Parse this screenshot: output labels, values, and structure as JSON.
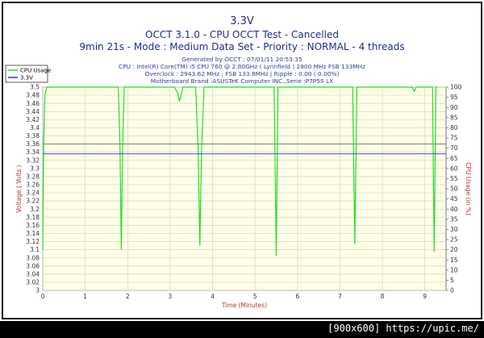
{
  "chart_data": {
    "type": "line",
    "title": "3.3V",
    "subtitle_lines": [
      "OCCT 3.1.0 - CPU OCCT Test - Cancelled",
      "9min 21s - Mode : Medium Data Set - Priority : NORMAL - 4 threads"
    ],
    "info_lines": [
      "Generated by OCCT : 07/01/11 20:53:35",
      "CPU : Intel(R) Core(TM) i5 CPU 760 @ 2.80GHz ( Lynnfield ) 2800 MHz FSB 133MHz",
      "Overclock : 2943.62 MHz ; FSB 133.8MHz | Ripple : 0.00 ( 0.00%)",
      "Motherboard Brand :ASUSTeK Computer INC.,Serie :P7P55 LX"
    ],
    "xlabel": "Time (Minutes)",
    "ylabel": "Voltage ( Volts )",
    "y2label": "CPU Usage (in %)",
    "xlim": [
      0,
      9.5
    ],
    "ylim": [
      3.0,
      3.5
    ],
    "y2lim": [
      0,
      100
    ],
    "x_ticks": [
      "0",
      "1",
      "2",
      "3",
      "4",
      "5",
      "6",
      "7",
      "8",
      "9"
    ],
    "y_ticks": [
      "3.5",
      "3.48",
      "3.46",
      "3.44",
      "3.42",
      "3.4",
      "3.38",
      "3.36",
      "3.34",
      "3.32",
      "3.3",
      "3.28",
      "3.26",
      "3.24",
      "3.22",
      "3.2",
      "3.18",
      "3.16",
      "3.14",
      "3.12",
      "3.1",
      "3.08",
      "3.06",
      "3.04",
      "3.02",
      "3"
    ],
    "y2_ticks": [
      "100",
      "95",
      "90",
      "85",
      "80",
      "75",
      "70",
      "65",
      "60",
      "55",
      "50",
      "45",
      "40",
      "35",
      "30",
      "25",
      "20",
      "15",
      "10",
      "5",
      "0"
    ],
    "grid": true,
    "legend_position": "top-left",
    "series": [
      {
        "name": "CPU Usage",
        "axis": "right",
        "color": "#22dd22",
        "x": [
          0.0,
          0.02,
          0.05,
          0.08,
          0.1,
          0.15,
          0.3,
          0.5,
          0.7,
          0.9,
          1.1,
          1.3,
          1.5,
          1.7,
          1.78,
          1.82,
          1.85,
          1.88,
          1.92,
          2.0,
          2.3,
          2.6,
          2.9,
          3.1,
          3.18,
          3.22,
          3.26,
          3.3,
          3.35,
          3.45,
          3.6,
          3.66,
          3.7,
          3.74,
          3.8,
          4.0,
          4.3,
          4.6,
          4.9,
          5.2,
          5.45,
          5.5,
          5.54,
          5.6,
          5.8,
          6.0,
          6.3,
          6.6,
          6.9,
          7.2,
          7.3,
          7.35,
          7.4,
          7.5,
          7.8,
          8.1,
          8.4,
          8.7,
          8.75,
          8.8,
          9.0,
          9.1,
          9.18,
          9.22,
          9.26,
          9.3
        ],
        "y": [
          20,
          70,
          96,
          99,
          100,
          100,
          100,
          100,
          100,
          100,
          100,
          100,
          100,
          100,
          100,
          70,
          20,
          70,
          100,
          100,
          100,
          100,
          100,
          100,
          97,
          93,
          96,
          100,
          100,
          100,
          100,
          70,
          22,
          70,
          100,
          100,
          100,
          100,
          100,
          100,
          100,
          17,
          100,
          100,
          100,
          100,
          100,
          100,
          100,
          100,
          100,
          23,
          100,
          100,
          100,
          100,
          100,
          100,
          98,
          100,
          100,
          100,
          100,
          19,
          100,
          100
        ]
      },
      {
        "name": "3.3V",
        "axis": "left",
        "color": "#3030dd",
        "x": [
          0.0,
          9.5
        ],
        "y": [
          3.336,
          3.336
        ]
      }
    ]
  },
  "footer": "[900x600] https://upic.me/"
}
